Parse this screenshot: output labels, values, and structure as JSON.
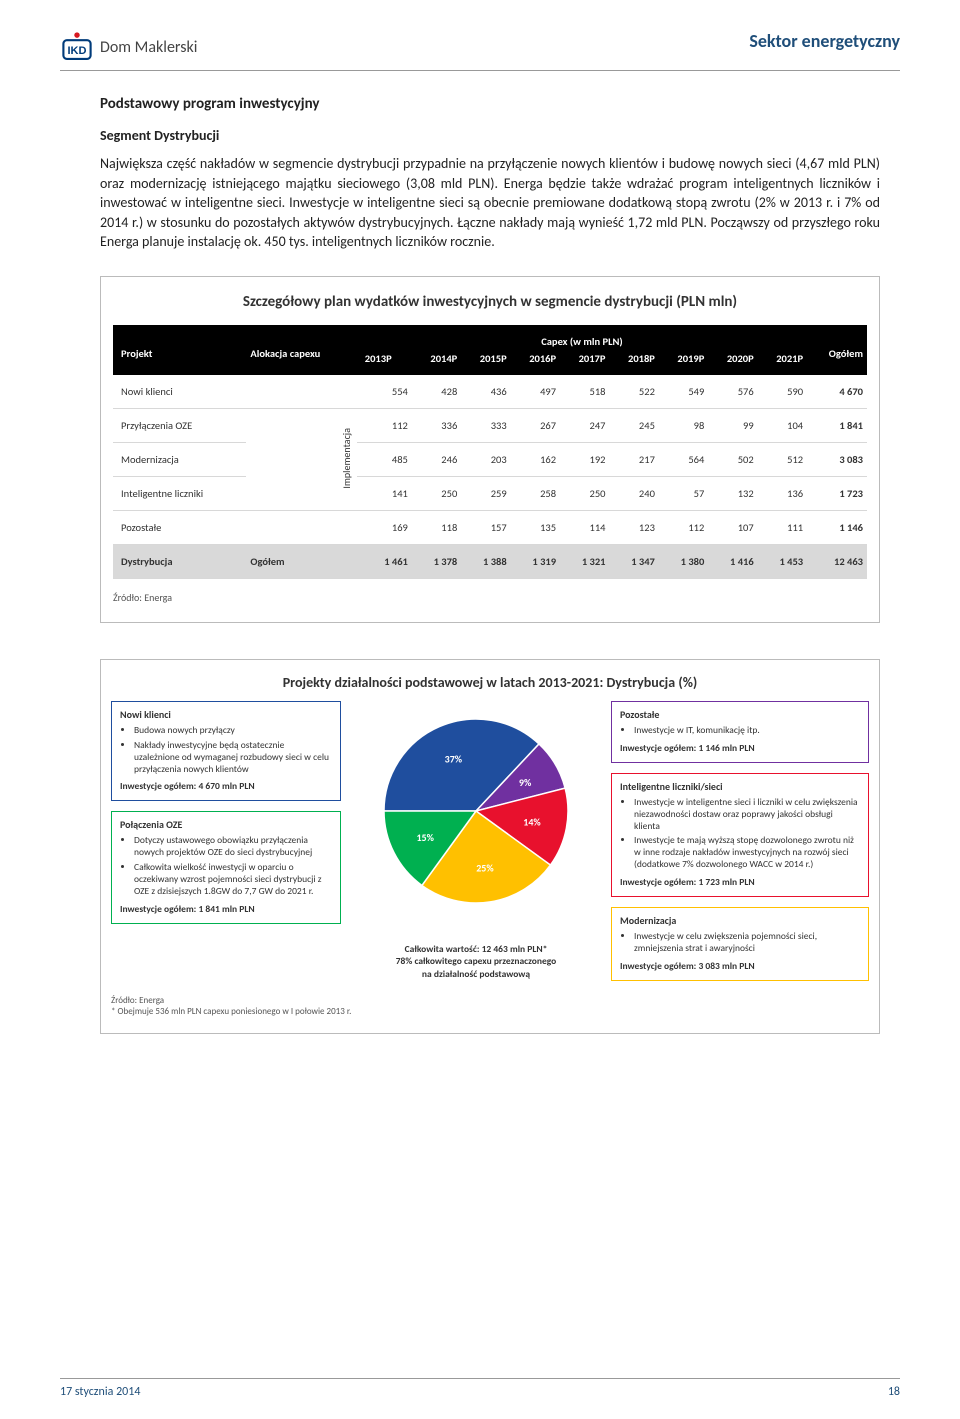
{
  "header": {
    "logo_text": "Dom Maklerski",
    "sector": "Sektor energetyczny"
  },
  "intro": {
    "title": "Podstawowy  program inwestycyjny",
    "subtitle": "Segment Dystrybucji",
    "paragraph": "Największa część nakładów w segmencie dystrybucji przypadnie na przyłączenie nowych klientów i budowę nowych sieci (4,67 mld PLN) oraz modernizację istniejącego majątku sieciowego (3,08 mld PLN). Energa będzie także wdrażać program inteligentnych liczników i inwestować w inteligentne sieci. Inwestycje w inteligentne sieci są obecnie premiowane dodatkową stopą zwrotu (2% w 2013 r. i 7% od 2014 r.) w stosunku do pozostałych aktywów dystrybucyjnych. Łączne nakłady mają wynieść 1,72 mld PLN. Począwszy od przyszłego roku Energa planuje instalację ok. 450 tys. inteligentnych liczników rocznie."
  },
  "table": {
    "title": "Szczegółowy plan wydatków inwestycyjnych w segmencie dystrybucji (PLN mln)",
    "head_project": "Projekt",
    "head_alloc": "Alokacja capexu",
    "head_capex": "Capex (w mln PLN)",
    "head_total": "Ogółem",
    "years": [
      "2013P",
      "2014P",
      "2015P",
      "2016P",
      "2017P",
      "2018P",
      "2019P",
      "2020P",
      "2021P"
    ],
    "alloc_label": "Implementacja",
    "rows": [
      {
        "name": "Nowi klienci",
        "vals": [
          "554",
          "428",
          "436",
          "497",
          "518",
          "522",
          "549",
          "576",
          "590"
        ],
        "total": "4 670"
      },
      {
        "name": "Przyłączenia OZE",
        "vals": [
          "112",
          "336",
          "333",
          "267",
          "247",
          "245",
          "98",
          "99",
          "104"
        ],
        "total": "1 841"
      },
      {
        "name": "Modernizacja",
        "vals": [
          "485",
          "246",
          "203",
          "162",
          "192",
          "217",
          "564",
          "502",
          "512"
        ],
        "total": "3 083"
      },
      {
        "name": "Inteligentne liczniki",
        "vals": [
          "141",
          "250",
          "259",
          "258",
          "250",
          "240",
          "57",
          "132",
          "136"
        ],
        "total": "1 723"
      },
      {
        "name": "Pozostałe",
        "vals": [
          "169",
          "118",
          "157",
          "135",
          "114",
          "123",
          "112",
          "107",
          "111"
        ],
        "total": "1 146"
      }
    ],
    "total_row": {
      "name": "Dystrybucja",
      "alloc": "Ogółem",
      "vals": [
        "1 461",
        "1 378",
        "1 388",
        "1 319",
        "1 321",
        "1 347",
        "1 380",
        "1 416",
        "1 453"
      ],
      "total": "12 463"
    },
    "source": "Źródło: Energa"
  },
  "pie_panel": {
    "title": "Projekty działalności podstawowej w latach 2013-2021: Dystrybucja (%)",
    "caption_1": "Całkowita wartość: 12 463 mln PLN*",
    "caption_2": "78% całkowitego capexu przeznaczonego",
    "caption_3": "na działalność podstawową",
    "footnote_1": "Źródło: Energa",
    "footnote_2": "* Obejmuje 536 mln PLN capexu poniesionego w I połowie 2013 r."
  },
  "pie": {
    "slices": [
      {
        "label": "37%",
        "value": 37,
        "color": "#1f4e9e"
      },
      {
        "label": "9%",
        "value": 9,
        "color": "#7030a0"
      },
      {
        "label": "14%",
        "value": 14,
        "color": "#e8112d"
      },
      {
        "label": "25%",
        "value": 25,
        "color": "#ffc000"
      },
      {
        "label": "15%",
        "value": 15,
        "color": "#00b050"
      }
    ]
  },
  "cards": {
    "nowi": {
      "title": "Nowi klienci",
      "border": "#1f4e9e",
      "items": [
        "Budowa nowych przyłączy",
        "Nakłady inwestycyjne będą ostatecznie uzależnione od wymaganej rozbudowy sieci w celu przyłączenia nowych klientów"
      ],
      "total": "Inwestycje ogółem: 4 670 mln PLN"
    },
    "oze": {
      "title": "Połączenia OZE",
      "border": "#00b050",
      "items": [
        "Dotyczy ustawowego obowiązku przyłączenia nowych projektów OZE do sieci dystrybucyjnej",
        "Całkowita wielkość inwestycji w oparciu o oczekiwany wzrost pojemności sieci dystrybucji z OZE z dzisiejszych 1.8GW do 7,7 GW do 2021 r."
      ],
      "total": "Inwestycje ogółem: 1 841 mln PLN"
    },
    "poz": {
      "title": "Pozostałe",
      "border": "#7030a0",
      "items": [
        "Inwestycje w IT, komunikację itp."
      ],
      "total": "Inwestycje ogółem: 1 146 mln PLN"
    },
    "int": {
      "title": "Inteligentne liczniki/sieci",
      "border": "#e8112d",
      "items": [
        "Inwestycje w inteligentne sieci i liczniki w celu zwiększenia niezawodności dostaw oraz poprawy jakości obsługi klienta",
        "Inwestycje te mają wyższą stopę dozwolonego zwrotu niż w inne rodzaje nakładów inwestycyjnych na rozwój sieci (dodatkowe 7% dozwolonego WACC w 2014 r.)"
      ],
      "total": "Inwestycje ogółem: 1 723 mln PLN"
    },
    "mod": {
      "title": "Modernizacja",
      "border": "#ffc000",
      "items": [
        "Inwestycje w celu zwiększenia pojemności sieci, zmniejszenia strat i awaryjności"
      ],
      "total": "Inwestycje ogółem: 3 083 mln PLN"
    }
  },
  "footer": {
    "date": "17 stycznia 2014",
    "page": "18"
  }
}
